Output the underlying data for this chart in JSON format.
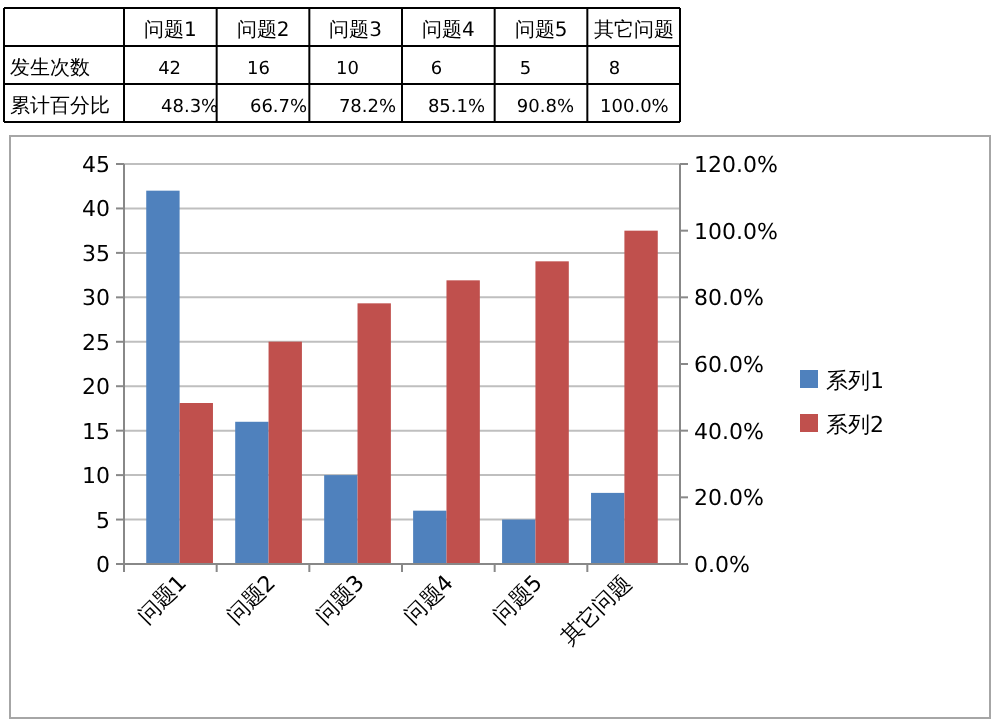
{
  "chart_data": {
    "type": "bar",
    "categories": [
      "问题1",
      "问题2",
      "问题3",
      "问题4",
      "问题5",
      "其它问题"
    ],
    "series": [
      {
        "name": "系列1",
        "color": "#4f81bd",
        "values": [
          42,
          16,
          10,
          6,
          5,
          8
        ],
        "value_labels": [
          "42",
          "16",
          "10",
          "6",
          "5",
          "8"
        ]
      },
      {
        "name": "系列2",
        "color": "#c0504d",
        "axis": "y2",
        "values": [
          48.3,
          66.7,
          78.2,
          85.1,
          90.8,
          100.0
        ],
        "value_labels": [
          "48.3%",
          "66.7%",
          "78.2%",
          "85.1%",
          "90.8%",
          "100.0%"
        ]
      }
    ],
    "annotations": [
      "发生次数",
      "累计百分比"
    ],
    "ylim": [
      0,
      45
    ],
    "yticks": [
      0,
      5,
      10,
      15,
      20,
      25,
      30,
      35,
      40,
      45
    ],
    "y2lim": [
      0,
      120
    ],
    "y2ticks": [
      {
        "value": 0,
        "label": "0.0%"
      },
      {
        "value": 20,
        "label": "20.0%"
      },
      {
        "value": 40,
        "label": "40.0%"
      },
      {
        "value": 60,
        "label": "60.0%"
      },
      {
        "value": 80,
        "label": "80.0%"
      },
      {
        "value": 100,
        "label": "100.0%"
      },
      {
        "value": 120,
        "label": "120.0%"
      }
    ],
    "grid": "y",
    "legend": "right"
  }
}
